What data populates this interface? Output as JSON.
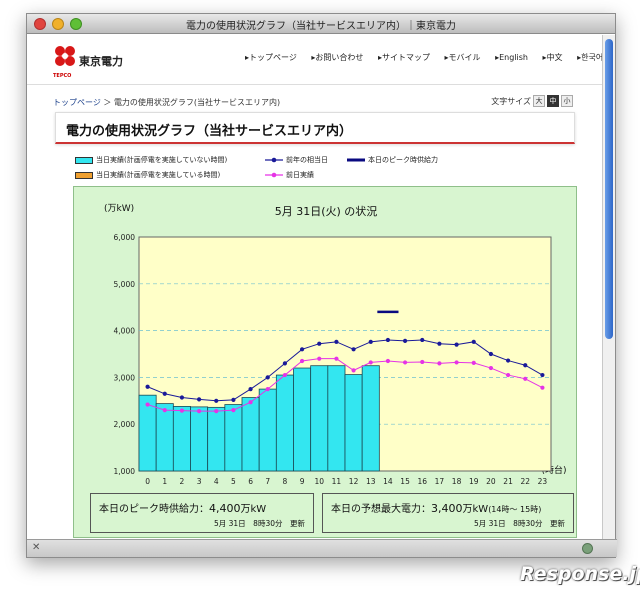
{
  "window": {
    "title": "電力の使用状況グラフ（当社サービスエリア内）｜東京電力"
  },
  "header": {
    "logo_text": "東京電力",
    "logo_sub": "TEPCO",
    "nav": [
      "トップページ",
      "お問い合わせ",
      "サイトマップ",
      "モバイル",
      "English",
      "中文",
      "한국어"
    ]
  },
  "breadcrumb": {
    "home": "トップページ",
    "sep": "＞",
    "current": "電力の使用状況グラフ(当社サービスエリア内)"
  },
  "font_size": {
    "label": "文字サイズ",
    "options": [
      "大",
      "中",
      "小"
    ],
    "selected": "中"
  },
  "page_title": "電力の使用状況グラフ（当社サービスエリア内）",
  "legend": {
    "actual_no_outage": "当日実績(計画停電を実施していない時間)",
    "actual_outage": "当日実績(計画停電を実施している時間)",
    "last_year": "前年の相当日",
    "peak_supply": "本日のピーク時供給力",
    "previous_day": "前日実績"
  },
  "colors": {
    "bar_no_outage": "#33e6f0",
    "bar_outage": "#f0a030",
    "last_year": "#1a1a99",
    "peak_supply": "#0a0a80",
    "previous_day": "#e633e6",
    "plot_bg": "#ffffc8",
    "panel_bg": "#d8f5d0"
  },
  "chart_data": {
    "type": "bar",
    "title": "5月 31日(火) の状況",
    "ylabel": "(万kW)",
    "xlabel": "(時台)",
    "ylim": [
      1000,
      6000
    ],
    "yticks": [
      "1,000",
      "2,000",
      "3,000",
      "4,000",
      "5,000",
      "6,000"
    ],
    "categories": [
      "0",
      "1",
      "2",
      "3",
      "4",
      "5",
      "6",
      "7",
      "8",
      "9",
      "10",
      "11",
      "12",
      "13",
      "14",
      "15",
      "16",
      "17",
      "18",
      "19",
      "20",
      "21",
      "22",
      "23"
    ],
    "series": [
      {
        "name": "当日実績(計画停電を実施していない時間)",
        "type": "bar",
        "values": [
          2620,
          2440,
          2380,
          2370,
          2360,
          2420,
          2570,
          2750,
          3050,
          3200,
          3250,
          3250,
          3060,
          3250,
          null,
          null,
          null,
          null,
          null,
          null,
          null,
          null,
          null,
          null
        ]
      },
      {
        "name": "前年の相当日",
        "type": "line",
        "values": [
          2800,
          2650,
          2570,
          2530,
          2500,
          2520,
          2750,
          3000,
          3300,
          3600,
          3720,
          3760,
          3600,
          3760,
          3800,
          3780,
          3800,
          3720,
          3700,
          3760,
          3500,
          3360,
          3260,
          3050
        ]
      },
      {
        "name": "前日実績",
        "type": "line",
        "values": [
          2420,
          2300,
          2290,
          2280,
          2280,
          2300,
          2470,
          2750,
          3050,
          3350,
          3400,
          3400,
          3150,
          3320,
          3350,
          3320,
          3330,
          3300,
          3320,
          3310,
          3200,
          3050,
          2970,
          2780
        ]
      },
      {
        "name": "本日のピーク時供給力",
        "type": "marker",
        "x": "14",
        "value": 4400
      }
    ]
  },
  "info": {
    "peak_supply_label": "本日のピーク時供給力：",
    "peak_supply_value": "4,400",
    "peak_supply_unit": "万kW",
    "peak_supply_updated": "5月 31日　8時30分　更新",
    "forecast_label": "本日の予想最大電力：",
    "forecast_value": "3,400",
    "forecast_unit": "万kW",
    "forecast_time": "(14時～ 15時)",
    "forecast_updated": "5月 31日　8時30分　更新"
  },
  "watermark": "Response.jp"
}
